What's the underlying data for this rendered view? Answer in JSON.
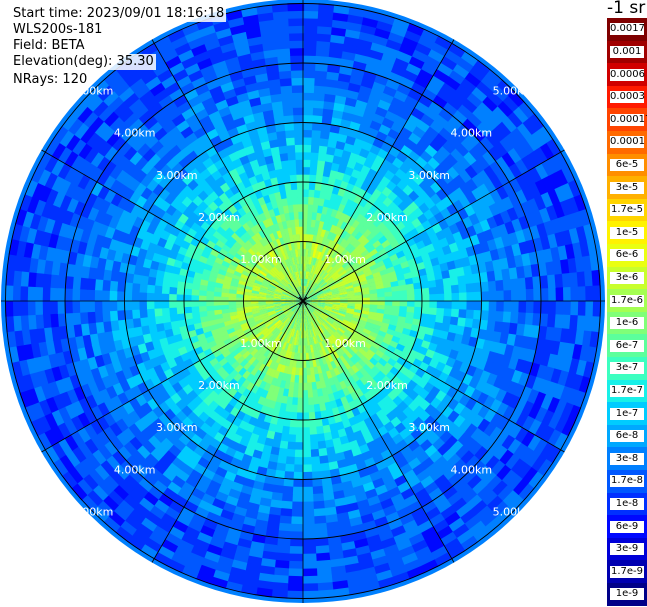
{
  "header": {
    "start_time": "Start time: 2023/09/01 18:16:18",
    "instrument": "WLS200s-181",
    "field": "Field: BETA",
    "elevation": "Elevation(deg): 35.30",
    "nrays": "NRays: 120"
  },
  "chart_data": {
    "type": "heatmap",
    "projection": "polar (PPI scan)",
    "field": "BETA",
    "unit": "-1 sr",
    "n_rays": 120,
    "elevation_deg": 35.3,
    "max_range_km": 5.0,
    "range_rings_km": [
      1.0,
      2.0,
      3.0,
      4.0,
      5.0
    ],
    "ring_labels": [
      "1.00km",
      "2.00km",
      "3.00km",
      "4.00km",
      "5.00km"
    ],
    "azimuth_lines_deg": [
      0,
      30,
      60,
      90,
      120,
      150,
      180,
      210,
      240,
      270,
      300,
      330
    ],
    "scale": "log",
    "beta_profile": [
      {
        "range_km": 0.0,
        "beta": 1e-06
      },
      {
        "range_km": 0.5,
        "beta": 1.7e-06
      },
      {
        "range_km": 1.0,
        "beta": 1.7e-06
      },
      {
        "range_km": 1.5,
        "beta": 6e-07
      },
      {
        "range_km": 2.0,
        "beta": 2e-07
      },
      {
        "range_km": 2.5,
        "beta": 1e-07
      },
      {
        "range_km": 3.0,
        "beta": 5e-08
      },
      {
        "range_km": 4.0,
        "beta": 2e-08
      },
      {
        "range_km": 5.0,
        "beta": 1.5e-08
      }
    ],
    "colorbar": {
      "labels": [
        "0.0017",
        "0.001",
        "0.0006",
        "0.0003",
        "0.00017",
        "0.0001",
        "6e-5",
        "3e-5",
        "1.7e-5",
        "1e-5",
        "6e-6",
        "3e-6",
        "1.7e-6",
        "1e-6",
        "6e-7",
        "3e-7",
        "1.7e-7",
        "1e-7",
        "6e-8",
        "3e-8",
        "1.7e-8",
        "1e-8",
        "6e-9",
        "3e-9",
        "1.7e-9",
        "1e-9"
      ],
      "colors": [
        "#7f0000",
        "#a00000",
        "#d00000",
        "#ff1a00",
        "#ff4400",
        "#ff6a00",
        "#ff8e00",
        "#ffb000",
        "#ffd400",
        "#fff200",
        "#eaff10",
        "#c8ff2c",
        "#a4ff52",
        "#80ff78",
        "#5cff9c",
        "#3cffc0",
        "#18f0e8",
        "#00ccff",
        "#00a8ff",
        "#0080ff",
        "#0058ff",
        "#0030ff",
        "#0008ff",
        "#0000d8",
        "#0000b0",
        "#000088"
      ]
    }
  }
}
